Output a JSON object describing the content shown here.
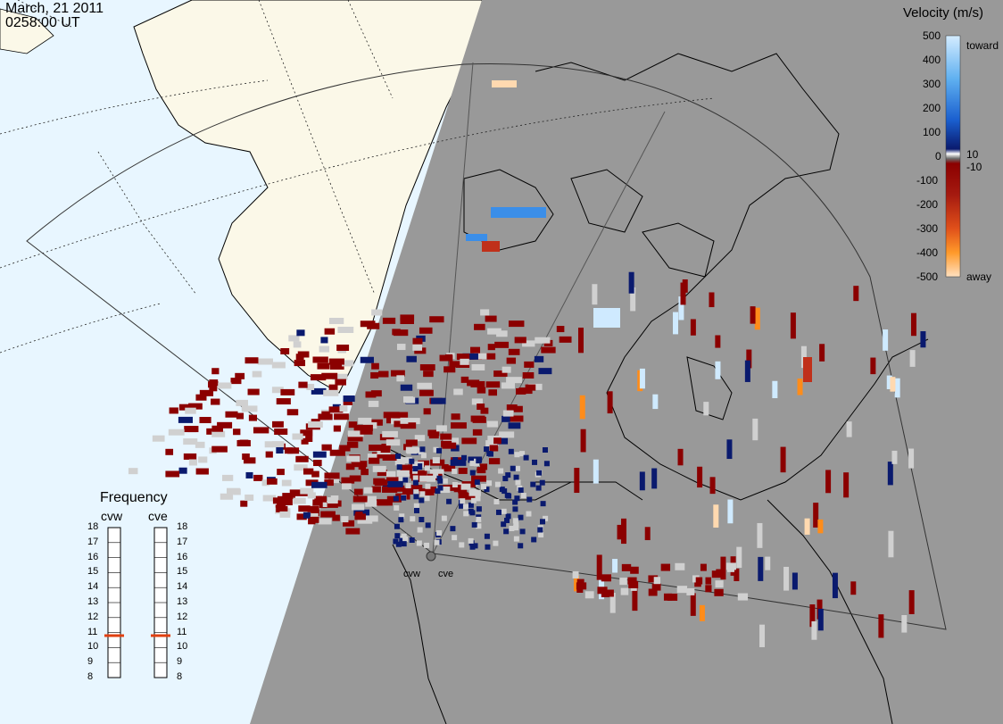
{
  "header": {
    "date": "March, 21 2011",
    "time": "0258:00 UT"
  },
  "colorbar": {
    "title": "Velocity (m/s)",
    "ticks": [
      "500",
      "400",
      "300",
      "200",
      "100",
      "0",
      "-100",
      "-200",
      "-300",
      "-400",
      "-500"
    ],
    "side_labels": {
      "toward": "toward",
      "away": "away",
      "pos10": "10",
      "neg10": "-10"
    },
    "colors": {
      "toward_top": "#cfeaff",
      "toward_mid": "#3b8ee8",
      "toward_low": "#0b2f9e",
      "near_zero_pos": "#0a1a6e",
      "near_zero_neg": "#8b0000",
      "away_mid": "#c0301a",
      "away_orange": "#ff8c1a",
      "away_top": "#ffd9b0",
      "ground_scatter": "#d0d0d0"
    }
  },
  "frequency": {
    "title": "Frequency",
    "radars": [
      "cvw",
      "cve"
    ],
    "ticks": [
      "18",
      "17",
      "16",
      "15",
      "14",
      "13",
      "12",
      "11",
      "10",
      "9",
      "8"
    ],
    "cvw_mhz": 10.8,
    "cve_mhz": 10.8
  },
  "radar_sites": [
    "cvw",
    "cve"
  ],
  "map_colors": {
    "ocean_day": "#e8f6ff",
    "land_day": "#fbf8e8",
    "night": "#999999"
  }
}
